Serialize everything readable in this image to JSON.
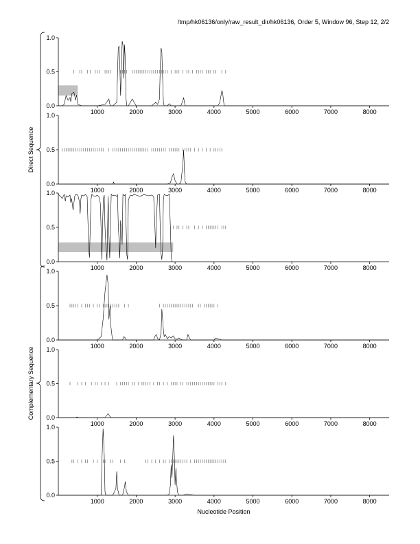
{
  "header": {
    "title": "/tmp/hk06136/only/raw_result_dir/hk06136, Order 5, Window 96, Step 12, 2/2"
  },
  "group_labels": {
    "direct": "Direct Sequence",
    "complementary": "Complementary Sequence"
  },
  "chart_data": {
    "type": "line",
    "xlabel": "Nucleotide Position",
    "xlim": [
      0,
      8500
    ],
    "ylim": [
      0,
      1
    ],
    "x_ticks": [
      1000,
      2000,
      3000,
      4000,
      5000,
      6000,
      7000,
      8000
    ],
    "y_ticks": [
      "0.0",
      "0.5",
      "1.0"
    ],
    "grid": false,
    "legend": "none",
    "colors": {
      "line": "#000000",
      "ticks": "#555555",
      "region": "#c0c0c0"
    },
    "panels": [
      {
        "group": "direct",
        "regions": [
          {
            "x": [
              0,
              500
            ],
            "y": [
              0.15,
              0.3
            ]
          }
        ],
        "ticks_y": 0.5,
        "tick_positions": [
          400,
          550,
          600,
          750,
          820,
          950,
          1000,
          1050,
          1200,
          1250,
          1300,
          1350,
          1600,
          1650,
          1700,
          1750,
          1900,
          1950,
          2000,
          2050,
          2100,
          2150,
          2200,
          2250,
          2300,
          2350,
          2400,
          2450,
          2500,
          2550,
          2600,
          2650,
          2700,
          2750,
          2800,
          2900,
          3000,
          3050,
          3100,
          3200,
          3300,
          3350,
          3450,
          3550,
          3600,
          3650,
          3700,
          3800,
          3850,
          3900,
          4000,
          4050,
          4200,
          4300
        ],
        "series": [
          {
            "x": [
              0,
              100,
              150,
              180,
              200,
              250,
              300,
              320,
              350,
              400,
              420,
              440,
              470,
              500,
              600,
              700,
              800,
              1000,
              1200,
              1300,
              1320,
              1340,
              1400,
              1500,
              1520,
              1540,
              1560,
              1580,
              1600,
              1620,
              1640,
              1660,
              1680,
              1700,
              1720,
              1740,
              1760,
              1800,
              1850,
              1900,
              2000,
              2200,
              2400,
              2500,
              2550,
              2600,
              2620,
              2640,
              2660,
              2680,
              2700,
              2720,
              2800,
              2850,
              2900,
              3000,
              3100,
              3150,
              3200,
              3220,
              3240,
              3260,
              3300,
              3500,
              3800,
              4000,
              4100,
              4150,
              4180,
              4200,
              4220,
              4240,
              4260,
              4300,
              4400,
              4600,
              8500
            ],
            "y": [
              0,
              0,
              0.02,
              0.1,
              0.15,
              0.08,
              0.12,
              0.06,
              0.18,
              0.2,
              0.15,
              0.08,
              0.16,
              0.02,
              0,
              0,
              0,
              0,
              0.02,
              0.1,
              0.03,
              0,
              0,
              0.05,
              0.45,
              0.85,
              0.88,
              0.6,
              0.15,
              0.5,
              0.95,
              0.9,
              0.4,
              0.9,
              0.7,
              0.1,
              0,
              0,
              0.05,
              0.1,
              0,
              0,
              0,
              0.05,
              0.02,
              0.1,
              0.6,
              0.85,
              0.8,
              0.4,
              0.05,
              0,
              0,
              0.03,
              0,
              0,
              0,
              0,
              0.08,
              0.12,
              0.05,
              0,
              0,
              0,
              0,
              0,
              0,
              0.05,
              0.15,
              0.22,
              0.2,
              0.1,
              0,
              0,
              0,
              0,
              0
            ]
          }
        ]
      },
      {
        "group": "direct",
        "regions": [],
        "ticks_y": 0.5,
        "tick_positions": [
          100,
          150,
          200,
          250,
          300,
          350,
          400,
          450,
          500,
          550,
          600,
          650,
          700,
          750,
          800,
          850,
          900,
          950,
          1000,
          1050,
          1100,
          1150,
          1300,
          1400,
          1450,
          1500,
          1550,
          1600,
          1650,
          1700,
          1750,
          1800,
          1850,
          1900,
          1950,
          2000,
          2050,
          2100,
          2150,
          2200,
          2250,
          2300,
          2400,
          2450,
          2500,
          2550,
          2600,
          2650,
          2700,
          2750,
          2850,
          2900,
          2950,
          3000,
          3050,
          3100,
          3200,
          3250,
          3300,
          3350,
          3400,
          3500,
          3600,
          3700,
          3800,
          3900,
          4000,
          4050,
          4100,
          4150,
          4200
        ],
        "series": [
          {
            "x": [
              0,
              1400,
              1420,
              1440,
              2800,
              2880,
              2920,
              2960,
              3000,
              3050,
              3100,
              3150,
              3200,
              3220,
              3240,
              3260,
              3280,
              3300,
              4000,
              8500
            ],
            "y": [
              0,
              0,
              0.03,
              0,
              0,
              0.02,
              0.1,
              0.15,
              0.05,
              0,
              0,
              0.02,
              0.3,
              0.5,
              0.2,
              0.03,
              0.01,
              0,
              0,
              0
            ]
          }
        ]
      },
      {
        "group": "direct",
        "regions": [
          {
            "x": [
              0,
              2950
            ],
            "y": [
              0.14,
              0.28
            ]
          }
        ],
        "ticks_y": 0.5,
        "tick_positions": [
          2950,
          3050,
          3100,
          3200,
          3300,
          3350,
          3500,
          3600,
          3700,
          3800,
          3850,
          3900,
          3950,
          4000,
          4050,
          4100,
          4200,
          4250,
          4300
        ],
        "series": [
          {
            "x": [
              0,
              60,
              100,
              150,
              180,
              200,
              250,
              300,
              320,
              340,
              380,
              420,
              450,
              500,
              540,
              560,
              580,
              600,
              650,
              700,
              740,
              760,
              780,
              800,
              820,
              840,
              860,
              880,
              900,
              950,
              1000,
              1050,
              1080,
              1100,
              1120,
              1140,
              1160,
              1180,
              1200,
              1220,
              1250,
              1280,
              1300,
              1320,
              1340,
              1360,
              1400,
              1450,
              1500,
              1520,
              1540,
              1560,
              1580,
              1600,
              1620,
              1640,
              1660,
              1700,
              1720,
              1740,
              1760,
              1780,
              1800,
              1850,
              1900,
              1950,
              2000,
              2100,
              2200,
              2300,
              2400,
              2450,
              2480,
              2500,
              2520,
              2550,
              2600,
              2620,
              2640,
              2660,
              2680,
              2700,
              2720,
              2750,
              2800,
              2850,
              2880,
              2900,
              2920,
              2950
            ],
            "y": [
              0.98,
              0.95,
              0.92,
              0.98,
              0.88,
              0.96,
              0.94,
              0.97,
              0.86,
              0.92,
              0.75,
              0.95,
              0.98,
              0.97,
              0.88,
              0.7,
              0.92,
              0.97,
              0.96,
              0.98,
              0.95,
              0.6,
              0.2,
              0.06,
              0.5,
              0.9,
              0.98,
              0.97,
              0.96,
              0.95,
              0.97,
              0.94,
              0.85,
              0.45,
              0.03,
              0.6,
              0.92,
              0.97,
              0.5,
              0.25,
              0.02,
              0.95,
              0.4,
              0.05,
              0.55,
              0.98,
              0.96,
              0.97,
              0.95,
              0.98,
              0.55,
              0.3,
              0.05,
              0.6,
              0.45,
              0.25,
              0.98,
              0.96,
              0.98,
              0.55,
              0.1,
              0.03,
              0.9,
              0.97,
              0.96,
              0.98,
              0.97,
              0.95,
              0.98,
              0.96,
              0.97,
              0.95,
              0.55,
              0.2,
              0.6,
              0.97,
              0.98,
              0.4,
              0.12,
              0.03,
              0.2,
              0.9,
              0.98,
              0.97,
              0.96,
              0.98,
              0.5,
              0.08,
              0,
              0
            ]
          }
        ]
      },
      {
        "group": "complementary",
        "regions": [],
        "ticks_y": 0.5,
        "tick_positions": [
          300,
          350,
          400,
          450,
          500,
          600,
          700,
          750,
          800,
          900,
          1000,
          1050,
          1150,
          1200,
          1250,
          1300,
          1350,
          1400,
          1450,
          1500,
          1550,
          1700,
          1800,
          2600,
          2700,
          2750,
          2800,
          2850,
          2900,
          2950,
          3000,
          3050,
          3100,
          3150,
          3200,
          3250,
          3300,
          3350,
          3400,
          3450,
          3600,
          3650,
          3750,
          3800,
          3850,
          3900,
          3950,
          4000,
          4100
        ],
        "series": [
          {
            "x": [
              0,
              1000,
              1050,
              1100,
              1150,
              1200,
              1250,
              1280,
              1300,
              1330,
              1350,
              1380,
              1400,
              1500,
              1650,
              1680,
              1720,
              1750,
              1800,
              1900,
              2000,
              2300,
              2450,
              2480,
              2520,
              2550,
              2600,
              2640,
              2660,
              2680,
              2700,
              2720,
              2750,
              2800,
              2850,
              2900,
              2950,
              3000,
              3050,
              3100,
              3150,
              3200,
              3300,
              3330,
              3360,
              3400,
              3500,
              3800,
              3900,
              4000,
              4050,
              4100,
              4200,
              4500,
              8500
            ],
            "y": [
              0,
              0,
              0.02,
              0.05,
              0.3,
              0.7,
              0.95,
              0.8,
              0.3,
              0.5,
              0.2,
              0.05,
              0,
              0,
              0,
              0.05,
              0.03,
              0,
              0,
              0,
              0,
              0,
              0,
              0.05,
              0.08,
              0.02,
              0,
              0.1,
              0.45,
              0.3,
              0.15,
              0.05,
              0.08,
              0.02,
              0.05,
              0.03,
              0.06,
              0.02,
              0.01,
              0.03,
              0.01,
              0,
              0,
              0.08,
              0.04,
              0,
              0,
              0,
              0,
              0,
              0.03,
              0.02,
              0,
              0,
              0
            ]
          }
        ]
      },
      {
        "group": "complementary",
        "regions": [],
        "ticks_y": 0.5,
        "tick_positions": [
          300,
          500,
          600,
          700,
          850,
          950,
          1000,
          1100,
          1200,
          1300,
          1500,
          1600,
          1650,
          1700,
          1750,
          1800,
          1900,
          1950,
          2050,
          2150,
          2200,
          2250,
          2300,
          2350,
          2450,
          2550,
          2600,
          2700,
          2800,
          2900,
          2950,
          3000,
          3050,
          3150,
          3200,
          3300,
          3350,
          3400,
          3450,
          3500,
          3550,
          3600,
          3650,
          3700,
          3750,
          3800,
          3850,
          3900,
          3950,
          4000,
          4100,
          4150,
          4200,
          4300
        ],
        "series": [
          {
            "x": [
              0,
              450,
              480,
              510,
              1200,
              1240,
              1280,
              1320,
              1350,
              8500
            ],
            "y": [
              0,
              0,
              0.01,
              0,
              0,
              0.03,
              0.06,
              0.02,
              0,
              0
            ]
          }
        ]
      },
      {
        "group": "complementary",
        "regions": [],
        "ticks_y": 0.5,
        "tick_positions": [
          350,
          400,
          500,
          600,
          700,
          750,
          900,
          1000,
          1150,
          1200,
          1350,
          1400,
          1600,
          1700,
          2250,
          2300,
          2400,
          2500,
          2600,
          2700,
          2750,
          2850,
          2900,
          2950,
          3000,
          3050,
          3100,
          3150,
          3200,
          3250,
          3300,
          3400,
          3500,
          3550,
          3600,
          3650,
          3700,
          3750,
          3800,
          3850,
          3900,
          3950,
          4000,
          4050,
          4100,
          4150,
          4200,
          4250,
          4300
        ],
        "series": [
          {
            "x": [
              0,
              1100,
              1120,
              1150,
              1180,
              1200,
              1220,
              1400,
              1480,
              1500,
              1520,
              1560,
              1650,
              1700,
              1720,
              1750,
              1800,
              2800,
              2850,
              2880,
              2900,
              2920,
              2940,
              2960,
              2980,
              3000,
              3020,
              3040,
              3060,
              3080,
              3100,
              3200,
              3300,
              3500,
              8500
            ],
            "y": [
              0,
              0,
              0.5,
              0.98,
              0.6,
              0.05,
              0,
              0,
              0.1,
              0.35,
              0.1,
              0,
              0,
              0.12,
              0.2,
              0.05,
              0,
              0,
              0.02,
              0.15,
              0.45,
              0.25,
              0.55,
              0.88,
              0.6,
              0.15,
              0.4,
              0.2,
              0.05,
              0.02,
              0,
              0,
              0.02,
              0,
              0
            ]
          }
        ]
      }
    ]
  }
}
